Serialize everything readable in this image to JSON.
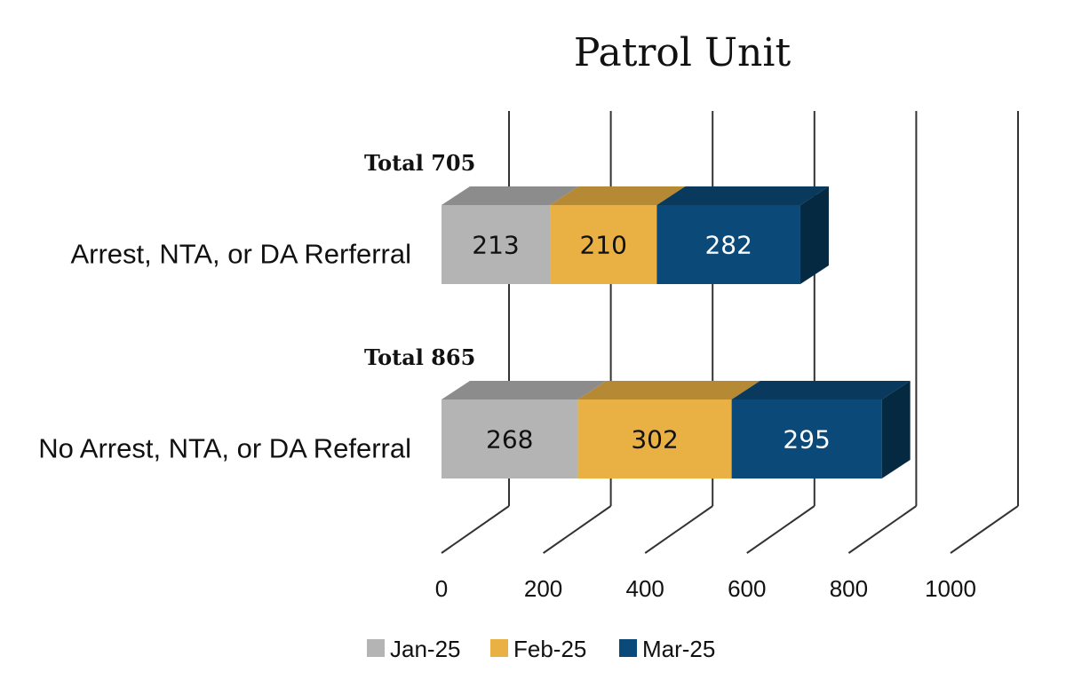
{
  "chart_data": {
    "type": "bar",
    "orientation": "horizontal",
    "stacked": true,
    "style": "3d",
    "title": "Patrol Unit",
    "categories": [
      "Arrest, NTA, or DA Rerferral",
      "No Arrest, NTA, or DA Referral"
    ],
    "category_totals": [
      "Total 705",
      "Total 865"
    ],
    "series": [
      {
        "name": "Jan-25",
        "values": [
          213,
          268
        ],
        "color": "#b4b4b4",
        "label_color": "#111111"
      },
      {
        "name": "Feb-25",
        "values": [
          210,
          302
        ],
        "color": "#e9b043",
        "label_color": "#111111"
      },
      {
        "name": "Mar-25",
        "values": [
          282,
          295
        ],
        "color": "#0b4a78",
        "label_color": "#ffffff"
      }
    ],
    "x_ticks": [
      0,
      200,
      400,
      600,
      800,
      1000
    ],
    "xlim": [
      0,
      1000
    ],
    "grid": true,
    "legend_position": "bottom"
  }
}
